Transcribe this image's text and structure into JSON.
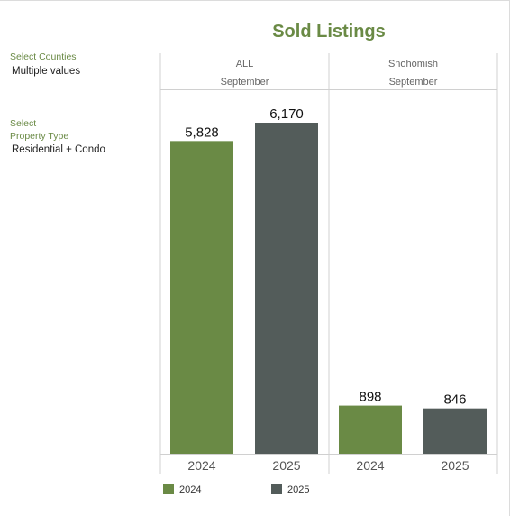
{
  "chart_data": {
    "type": "bar",
    "title": "Sold Listings",
    "panels": [
      {
        "header": "ALL",
        "subheader": "September",
        "categories": [
          "2024",
          "2025"
        ],
        "values": [
          5828,
          6170
        ],
        "labels": [
          "5,828",
          "6,170"
        ]
      },
      {
        "header": "Snohomish",
        "subheader": "September",
        "categories": [
          "2024",
          "2025"
        ],
        "values": [
          898,
          846
        ],
        "labels": [
          "898",
          "846"
        ]
      }
    ],
    "series": [
      {
        "name": "2024",
        "color": "#6a8a45"
      },
      {
        "name": "2025",
        "color": "#535c5a"
      }
    ],
    "ylim": [
      0,
      6170
    ],
    "grid": false,
    "legend_position": "bottom-left"
  },
  "filters": {
    "county_label": "Select Counties",
    "county_value": "Multiple values",
    "property_label_line1": "Select",
    "property_label_line2": "Property Type",
    "property_value": "Residential + Condo"
  },
  "legend": {
    "item1": "2024",
    "item2": "2025"
  }
}
